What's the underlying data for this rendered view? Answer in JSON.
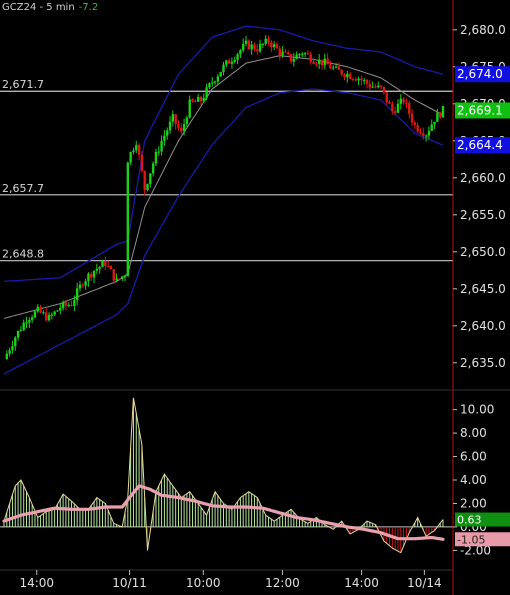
{
  "header": {
    "symbol": "GCZ24 - 5 min",
    "change": "-7.2"
  },
  "colors": {
    "background": "#000000",
    "up_candle": "#19d119",
    "down_candle": "#e01515",
    "upper_band": "#1a1aa8",
    "lower_band": "#1a1aa8",
    "middle_line": "#909090",
    "hline": "#c8c8c8",
    "axis_divider": "#c01010",
    "osc_fill": "#b4e8a0",
    "osc_neg_fill": "#c81818",
    "signal_line": "#e8a0b0"
  },
  "chart_data": [
    {
      "type": "candlestick",
      "symbol": "GCZ24",
      "interval": "5 min",
      "x_ticks": [
        "14:00",
        "10/11",
        "10:00",
        "12:00",
        "14:00",
        "10/14"
      ],
      "y_ticks": [
        "2,635.0",
        "2,640.0",
        "2,645.0",
        "2,650.0",
        "2,655.0",
        "2,660.0",
        "2,665.0",
        "2,670.0",
        "2,675.0",
        "2,680.0"
      ],
      "ylim": [
        2632,
        2682
      ],
      "horizontal_lines": [
        {
          "label": "2,671.7",
          "value": 2671.7
        },
        {
          "label": "2,657.7",
          "value": 2657.7
        },
        {
          "label": "2,648.8",
          "value": 2648.8
        }
      ],
      "price_tags": [
        {
          "label": "2,674.0",
          "value": 2674.0,
          "color": "#1010e0"
        },
        {
          "label": "2,669.1",
          "value": 2669.1,
          "color": "#10c010"
        },
        {
          "label": "2,664.4",
          "value": 2664.4,
          "color": "#1010e0"
        }
      ],
      "close_path": [
        [
          0,
          2635.5
        ],
        [
          4,
          2638.5
        ],
        [
          8,
          2641.0
        ],
        [
          12,
          2642.0
        ],
        [
          16,
          2641.0
        ],
        [
          20,
          2642.5
        ],
        [
          24,
          2643.0
        ],
        [
          28,
          2646.0
        ],
        [
          32,
          2647.5
        ],
        [
          36,
          2648.5
        ],
        [
          40,
          2646.0
        ],
        [
          43,
          2647.0
        ],
        [
          44,
          2662.5
        ],
        [
          47,
          2665.0
        ],
        [
          50,
          2658.5
        ],
        [
          53,
          2662.0
        ],
        [
          56,
          2665.0
        ],
        [
          60,
          2668.0
        ],
        [
          63,
          2666.0
        ],
        [
          66,
          2670.0
        ],
        [
          70,
          2670.5
        ],
        [
          74,
          2673.0
        ],
        [
          78,
          2675.0
        ],
        [
          82,
          2676.5
        ],
        [
          86,
          2678.0
        ],
        [
          90,
          2677.5
        ],
        [
          94,
          2678.5
        ],
        [
          98,
          2677.0
        ],
        [
          102,
          2676.0
        ],
        [
          106,
          2677.0
        ],
        [
          110,
          2676.0
        ],
        [
          114,
          2675.5
        ],
        [
          118,
          2674.5
        ],
        [
          122,
          2674.0
        ],
        [
          126,
          2673.5
        ],
        [
          130,
          2672.5
        ],
        [
          134,
          2672.0
        ],
        [
          138,
          2669.0
        ],
        [
          142,
          2670.5
        ],
        [
          146,
          2667.0
        ],
        [
          150,
          2666.0
        ],
        [
          153,
          2668.0
        ],
        [
          156,
          2669.1
        ]
      ],
      "bands": {
        "upper": [
          [
            0,
            2646.0
          ],
          [
            20,
            2646.5
          ],
          [
            40,
            2651.0
          ],
          [
            44,
            2651.5
          ],
          [
            50,
            2665.0
          ],
          [
            62,
            2674.0
          ],
          [
            74,
            2679.0
          ],
          [
            86,
            2680.5
          ],
          [
            98,
            2680.0
          ],
          [
            110,
            2678.5
          ],
          [
            122,
            2677.5
          ],
          [
            134,
            2677.0
          ],
          [
            146,
            2675.0
          ],
          [
            156,
            2674.0
          ]
        ],
        "middle": [
          [
            0,
            2641.0
          ],
          [
            20,
            2643.0
          ],
          [
            40,
            2646.0
          ],
          [
            44,
            2647.0
          ],
          [
            50,
            2656.0
          ],
          [
            62,
            2665.0
          ],
          [
            74,
            2672.0
          ],
          [
            86,
            2675.5
          ],
          [
            98,
            2676.5
          ],
          [
            110,
            2676.0
          ],
          [
            122,
            2675.0
          ],
          [
            134,
            2673.5
          ],
          [
            146,
            2670.5
          ],
          [
            156,
            2668.5
          ]
        ],
        "lower": [
          [
            0,
            2633.5
          ],
          [
            20,
            2637.5
          ],
          [
            40,
            2641.5
          ],
          [
            44,
            2643.0
          ],
          [
            50,
            2649.5
          ],
          [
            62,
            2657.5
          ],
          [
            74,
            2664.5
          ],
          [
            86,
            2669.5
          ],
          [
            98,
            2671.5
          ],
          [
            110,
            2672.0
          ],
          [
            122,
            2671.5
          ],
          [
            134,
            2670.5
          ],
          [
            146,
            2666.0
          ],
          [
            156,
            2664.4
          ]
        ]
      }
    },
    {
      "type": "area",
      "name": "oscillator",
      "y_ticks": [
        "-2.00",
        "0.00",
        "2.00",
        "4.00",
        "6.00",
        "8.00",
        "10.00"
      ],
      "ylim": [
        -3.5,
        11.5
      ],
      "value_tags": [
        {
          "label": "0.63",
          "value": 0.63,
          "color": "#109010"
        },
        {
          "label": "-1.05",
          "value": -1.05,
          "color": "#e89aa8"
        }
      ],
      "histogram": [
        [
          0,
          0.5
        ],
        [
          4,
          3.5
        ],
        [
          6,
          4.0
        ],
        [
          9,
          2.5
        ],
        [
          12,
          0.8
        ],
        [
          15,
          1.3
        ],
        [
          18,
          1.5
        ],
        [
          21,
          2.8
        ],
        [
          24,
          2.2
        ],
        [
          27,
          1.5
        ],
        [
          30,
          1.5
        ],
        [
          33,
          2.5
        ],
        [
          36,
          2.0
        ],
        [
          39,
          0.3
        ],
        [
          42,
          0.0
        ],
        [
          44,
          2.5
        ],
        [
          46,
          11.0
        ],
        [
          49,
          7.0
        ],
        [
          51,
          -2.0
        ],
        [
          54,
          3.0
        ],
        [
          57,
          4.5
        ],
        [
          60,
          3.5
        ],
        [
          63,
          2.5
        ],
        [
          66,
          3.0
        ],
        [
          69,
          2.0
        ],
        [
          72,
          1.0
        ],
        [
          75,
          3.0
        ],
        [
          78,
          2.0
        ],
        [
          81,
          1.5
        ],
        [
          84,
          2.5
        ],
        [
          87,
          3.0
        ],
        [
          90,
          2.5
        ],
        [
          93,
          1.0
        ],
        [
          96,
          0.5
        ],
        [
          99,
          1.0
        ],
        [
          102,
          1.5
        ],
        [
          105,
          0.7
        ],
        [
          108,
          0.3
        ],
        [
          111,
          0.8
        ],
        [
          114,
          0.2
        ],
        [
          117,
          -0.2
        ],
        [
          120,
          0.5
        ],
        [
          123,
          -0.6
        ],
        [
          126,
          -0.2
        ],
        [
          129,
          0.5
        ],
        [
          132,
          0.2
        ],
        [
          135,
          -1.2
        ],
        [
          138,
          -1.8
        ],
        [
          141,
          -2.2
        ],
        [
          144,
          -0.5
        ],
        [
          147,
          0.8
        ],
        [
          150,
          -0.8
        ],
        [
          153,
          -0.3
        ],
        [
          156,
          0.63
        ]
      ],
      "signal": [
        [
          0,
          0.5
        ],
        [
          6,
          1.0
        ],
        [
          12,
          1.3
        ],
        [
          18,
          1.6
        ],
        [
          24,
          1.5
        ],
        [
          30,
          1.5
        ],
        [
          36,
          1.7
        ],
        [
          42,
          1.7
        ],
        [
          48,
          3.5
        ],
        [
          52,
          3.2
        ],
        [
          56,
          2.7
        ],
        [
          62,
          2.5
        ],
        [
          68,
          2.2
        ],
        [
          74,
          1.8
        ],
        [
          80,
          1.7
        ],
        [
          86,
          1.7
        ],
        [
          92,
          1.6
        ],
        [
          98,
          1.2
        ],
        [
          104,
          0.8
        ],
        [
          110,
          0.6
        ],
        [
          116,
          0.3
        ],
        [
          122,
          0.0
        ],
        [
          128,
          -0.2
        ],
        [
          134,
          -0.5
        ],
        [
          140,
          -1.0
        ],
        [
          146,
          -1.0
        ],
        [
          152,
          -0.9
        ],
        [
          156,
          -1.05
        ]
      ]
    }
  ]
}
